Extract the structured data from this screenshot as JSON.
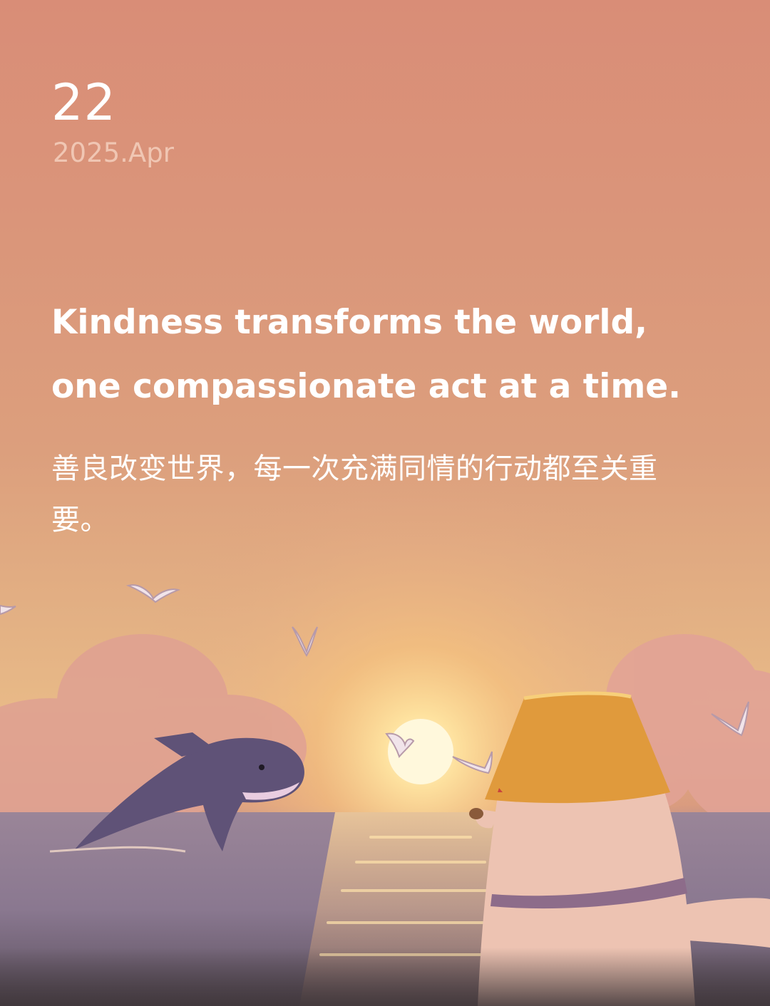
{
  "card": {
    "day": "22",
    "month_year": "2025.Apr",
    "quote_en_lines": [
      "Kindness transforms the world,",
      "one compassionate act at a time."
    ],
    "quote_zh": "善良改变世界，每一次充满同情的行动都至关重要。"
  },
  "colors": {
    "sky_top": "#d98d77",
    "sky_glow": "#f3c98a",
    "sun": "#fff6d6",
    "sea": "#8f7f97",
    "whale": "#5f5277",
    "hat": "#e09a3c",
    "bear": "#edc3b2"
  },
  "illustration": {
    "elements": [
      "sun-icon",
      "whale-icon",
      "bear-icon",
      "bucket-hat-icon",
      "seagull-icon",
      "cloud-icon",
      "sea"
    ]
  }
}
